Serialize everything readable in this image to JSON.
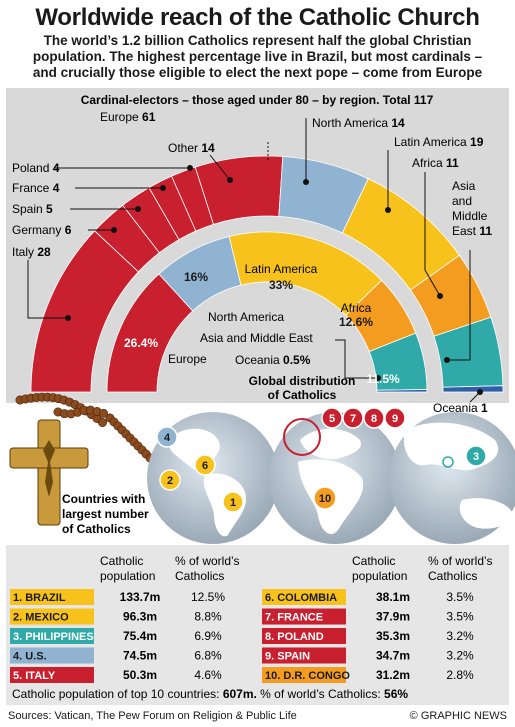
{
  "header": {
    "title": "Worldwide reach of the Catholic Church",
    "subtitle_lines": [
      "The world’s 1.2 billion Catholics represent half the global Christian",
      "population. The highest percentage live in Brazil, but most cardinals –",
      "and crucially those eligible to elect the next pope – come from Europe"
    ]
  },
  "chart_data": [
    {
      "type": "pie",
      "title": "Cardinal-electors – those aged under 80 – by region. Total 117",
      "total": 117,
      "slices": [
        {
          "label": "Italy",
          "value": 28,
          "color": "#c8202f"
        },
        {
          "label": "Germany",
          "value": 6,
          "color": "#c8202f"
        },
        {
          "label": "Spain",
          "value": 5,
          "color": "#c8202f"
        },
        {
          "label": "France",
          "value": 4,
          "color": "#c8202f"
        },
        {
          "label": "Poland",
          "value": 4,
          "color": "#c8202f"
        },
        {
          "label": "Other",
          "value": 14,
          "color": "#c8202f"
        },
        {
          "label": "North America",
          "value": 14,
          "color": "#8fb3d1"
        },
        {
          "label": "Latin America",
          "value": 19,
          "color": "#f7c21c"
        },
        {
          "label": "Africa",
          "value": 11,
          "color": "#f39c1f"
        },
        {
          "label": "Asia and Middle East",
          "value": 11,
          "color": "#30aaa8"
        },
        {
          "label": "Oceania",
          "value": 1,
          "color": "#2e5fa8"
        }
      ],
      "group_label": "Europe",
      "group_value": 61
    },
    {
      "type": "pie",
      "title": "Global distribution of Catholics",
      "slices": [
        {
          "label": "Europe",
          "value": 26.4,
          "display": "26.4%",
          "color": "#c8202f"
        },
        {
          "label": "North America",
          "value": 16,
          "display": "16%",
          "color": "#8fb3d1"
        },
        {
          "label": "Latin America",
          "value": 33,
          "display": "33%",
          "color": "#f7c21c"
        },
        {
          "label": "Africa",
          "value": 12.6,
          "display": "12.6%",
          "color": "#f39c1f"
        },
        {
          "label": "Asia and Middle East",
          "value": 11.5,
          "display": "11.5%",
          "color": "#30aaa8"
        },
        {
          "label": "Oceania",
          "value": 0.5,
          "display": "0.5%",
          "color": "#2e5fa8"
        }
      ]
    },
    {
      "type": "table",
      "columns": [
        "Catholic population",
        "% of world’s Catholics"
      ],
      "rows": [
        {
          "rank": "1. BRAZIL",
          "population": "133.7m",
          "share": "12.5%",
          "color": "#f7c21c"
        },
        {
          "rank": "2. MEXICO",
          "population": "96.3m",
          "share": "8.8%",
          "color": "#f7c21c"
        },
        {
          "rank": "3. PHILIPPINES",
          "population": "75.4m",
          "share": "6.9%",
          "color": "#30aaa8"
        },
        {
          "rank": "4. U.S.",
          "population": "74.5m",
          "share": "6.8%",
          "color": "#8fb3d1"
        },
        {
          "rank": "5. ITALY",
          "population": "50.3m",
          "share": "4.6%",
          "color": "#c8202f"
        },
        {
          "rank": "6. COLOMBIA",
          "population": "38.1m",
          "share": "3.5%",
          "color": "#f7c21c"
        },
        {
          "rank": "7. FRANCE",
          "population": "37.9m",
          "share": "3.5%",
          "color": "#c8202f"
        },
        {
          "rank": "8. POLAND",
          "population": "35.3m",
          "share": "3.2%",
          "color": "#c8202f"
        },
        {
          "rank": "9. SPAIN",
          "population": "34.7m",
          "share": "3.2%",
          "color": "#c8202f"
        },
        {
          "rank": "10. D.R. CONGO",
          "population": "31.2m",
          "share": "2.8%",
          "color": "#f39c1f"
        }
      ]
    }
  ],
  "inner_labels": {
    "europe": "Europe",
    "north_america": "North America",
    "asia": "Asia and Middle East",
    "oceania": "Oceania",
    "oceania_pct": "0.5%",
    "global_title_1": "Global distribution",
    "global_title_2": "of Catholics"
  },
  "outer_labels": {
    "europe": "Europe",
    "europe_value": "61",
    "other": "Other",
    "other_value": "14",
    "poland": "Poland",
    "poland_value": "4",
    "france": "France",
    "france_value": "4",
    "spain": "Spain",
    "spain_value": "5",
    "germany": "Germany",
    "germany_value": "6",
    "italy": "Italy",
    "italy_value": "28",
    "north_america": "North America",
    "north_america_value": "14",
    "latin_america": "Latin America",
    "latin_america_value": "19",
    "africa": "Africa",
    "africa_value": "11",
    "asia_1": "Asia",
    "asia_2": "and",
    "asia_3": "Middle",
    "asia_4": "East",
    "asia_value": "11",
    "oceania": "Oceania",
    "oceania_value": "1"
  },
  "countries_box": {
    "line1": "Countries with",
    "line2": "largest number",
    "line3": "of Catholics"
  },
  "table_headers": {
    "pop_1": "Catholic",
    "pop_2": "population",
    "pct_1": "% of world’s",
    "pct_2": "Catholics"
  },
  "map_markers": [
    "4",
    "6",
    "2",
    "1",
    "5",
    "7",
    "8",
    "9",
    "10",
    "3"
  ],
  "totals": {
    "prefix": "Catholic population of top 10 countries: ",
    "population": "607m.",
    "middle": " % of world’s Catholics: ",
    "share": "56%"
  },
  "footer": {
    "sources": "Sources: Vatican, The Pew Forum on Religion & Public Life",
    "brand": "© GRAPHIC NEWS"
  }
}
